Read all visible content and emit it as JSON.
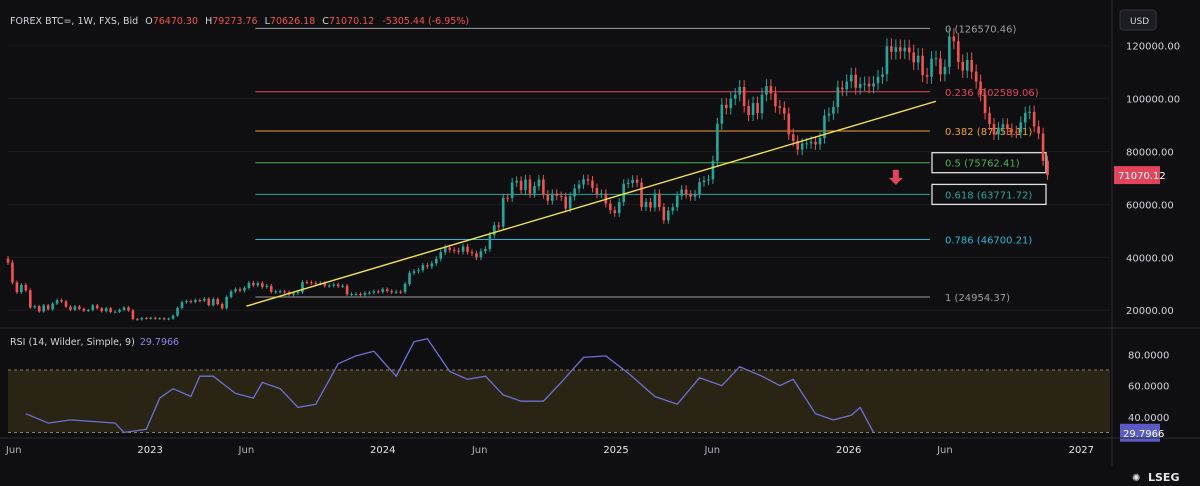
{
  "header": {
    "symbol": "FOREX BTC=, 1W, FXS, Bid",
    "o_label": "O",
    "o": "76470.30",
    "h_label": "H",
    "h": "79273.76",
    "l_label": "L",
    "l": "70626.18",
    "c_label": "C",
    "c": "71070.12",
    "change": "-5305.44 (-6.95%)"
  },
  "currency": "USD",
  "brand": "LSEG",
  "colors": {
    "up": "#26a69a",
    "down": "#ef5350",
    "trend": "#f5e14a",
    "rsi": "#6f6fd6",
    "last_price_bg": "#e2455b"
  },
  "chart_data": {
    "type": "candlestick",
    "y_axis": {
      "scale": "linear",
      "min": 14000,
      "max": 132000,
      "ticks": [
        20000,
        40000,
        60000,
        80000,
        100000,
        120000
      ]
    },
    "y_tick_labels": [
      "20000.00",
      "40000.00",
      "60000.00",
      "80000.00",
      "100000.00",
      "120000.00"
    ],
    "x_axis": {
      "range": [
        "2022-05-23",
        "2027-02-15"
      ],
      "tick_labels": [
        {
          "date": "2022-06-01",
          "label": "Jun"
        },
        {
          "date": "2023-01-01",
          "label": "2023"
        },
        {
          "date": "2023-06-01",
          "label": "Jun"
        },
        {
          "date": "2024-01-01",
          "label": "2024"
        },
        {
          "date": "2024-06-01",
          "label": "Jun"
        },
        {
          "date": "2025-01-01",
          "label": "2025"
        },
        {
          "date": "2025-06-01",
          "label": "Jun"
        },
        {
          "date": "2026-01-01",
          "label": "2026"
        },
        {
          "date": "2026-06-01",
          "label": "Jun"
        },
        {
          "date": "2027-01-01",
          "label": "2027"
        }
      ]
    },
    "last_price": {
      "value": 71070.12,
      "label": "71070.12"
    },
    "fib_levels": [
      {
        "ratio": "0",
        "value": 126570.46,
        "label": "0 (126570.46)",
        "color": "#9e9e9e",
        "boxed": false
      },
      {
        "ratio": "0.236",
        "value": 102589.06,
        "label": "0.236 (102589.06)",
        "color": "#e2455b",
        "boxed": false
      },
      {
        "ratio": "0.382",
        "value": 87753.11,
        "label": "0.382 (87753.11)",
        "color": "#f0a030",
        "boxed": false
      },
      {
        "ratio": "0.5",
        "value": 75762.41,
        "label": "0.5 (75762.41)",
        "color": "#4caf50",
        "boxed": true
      },
      {
        "ratio": "0.618",
        "value": 63771.72,
        "label": "0.618 (63771.72)",
        "color": "#26a69a",
        "boxed": true
      },
      {
        "ratio": "0.786",
        "value": 46700.21,
        "label": "0.786 (46700.21)",
        "color": "#29b6d6",
        "boxed": false
      },
      {
        "ratio": "1",
        "value": 24954.37,
        "label": "1 (24954.37)",
        "color": "#9e9e9e",
        "boxed": false
      }
    ],
    "fib_start_date": "2023-06-15",
    "trendline": {
      "points": [
        {
          "date": "2023-06-01",
          "value": 21500
        },
        {
          "date": "2026-05-18",
          "value": 99000
        }
      ]
    },
    "arrow": {
      "date": "2026-03-16",
      "value": 68500
    },
    "candles_weekly": [
      [
        39500,
        38000
      ],
      [
        38000,
        30500
      ],
      [
        30500,
        26800
      ],
      [
        26800,
        29500
      ],
      [
        29500,
        27500
      ],
      [
        27500,
        21000
      ],
      [
        21000,
        21500
      ],
      [
        21500,
        19500
      ],
      [
        19500,
        21800
      ],
      [
        21800,
        20300
      ],
      [
        20300,
        22500
      ],
      [
        22500,
        23800
      ],
      [
        23800,
        23300
      ],
      [
        23300,
        21300
      ],
      [
        21300,
        20100
      ],
      [
        20100,
        21400
      ],
      [
        21400,
        20500
      ],
      [
        20500,
        19800
      ],
      [
        19800,
        20000
      ],
      [
        20000,
        21800
      ],
      [
        21800,
        20700
      ],
      [
        20700,
        19600
      ],
      [
        19600,
        20700
      ],
      [
        20700,
        19300
      ],
      [
        19300,
        19400
      ],
      [
        19400,
        20100
      ],
      [
        20100,
        21000
      ],
      [
        21000,
        19900
      ],
      [
        19900,
        16600
      ],
      [
        16600,
        16500
      ],
      [
        16500,
        17000
      ],
      [
        17000,
        16900
      ],
      [
        16900,
        17100
      ],
      [
        17100,
        16800
      ],
      [
        16800,
        16900
      ],
      [
        16900,
        16600
      ],
      [
        16600,
        16800
      ],
      [
        16800,
        17900
      ],
      [
        17900,
        20800
      ],
      [
        20800,
        23000
      ],
      [
        23000,
        23400
      ],
      [
        23400,
        23100
      ],
      [
        23100,
        23800
      ],
      [
        23800,
        23600
      ],
      [
        23600,
        24300
      ],
      [
        24300,
        21900
      ],
      [
        21900,
        24200
      ],
      [
        24200,
        22300
      ],
      [
        22300,
        20700
      ],
      [
        20700,
        25000
      ],
      [
        25000,
        27100
      ],
      [
        27100,
        27900
      ],
      [
        27900,
        27400
      ],
      [
        27400,
        28400
      ],
      [
        28400,
        30300
      ],
      [
        30300,
        29400
      ],
      [
        29400,
        30200
      ],
      [
        30200,
        28800
      ],
      [
        28800,
        29200
      ],
      [
        29200,
        26900
      ],
      [
        26900,
        27100
      ],
      [
        27100,
        27100
      ],
      [
        27100,
        26800
      ],
      [
        26800,
        25900
      ],
      [
        25900,
        26400
      ],
      [
        26400,
        26800
      ],
      [
        26800,
        30600
      ],
      [
        30600,
        30500
      ],
      [
        30500,
        30300
      ],
      [
        30300,
        30100
      ],
      [
        30100,
        30200
      ],
      [
        30200,
        29200
      ],
      [
        29200,
        29300
      ],
      [
        29300,
        29700
      ],
      [
        29700,
        29100
      ],
      [
        29100,
        29200
      ],
      [
        29200,
        26000
      ],
      [
        26000,
        26100
      ],
      [
        26100,
        26100
      ],
      [
        26100,
        25900
      ],
      [
        25900,
        26500
      ],
      [
        26500,
        26600
      ],
      [
        26600,
        27100
      ],
      [
        27100,
        26900
      ],
      [
        26900,
        27900
      ],
      [
        27900,
        27200
      ],
      [
        27200,
        26800
      ],
      [
        26800,
        27000
      ],
      [
        27000,
        26800
      ],
      [
        26800,
        29900
      ],
      [
        29900,
        34100
      ],
      [
        34100,
        34700
      ],
      [
        34700,
        35100
      ],
      [
        35100,
        37000
      ],
      [
        37000,
        36500
      ],
      [
        36500,
        37700
      ],
      [
        37700,
        39400
      ],
      [
        39400,
        41900
      ],
      [
        41900,
        43700
      ],
      [
        43700,
        42800
      ],
      [
        42800,
        42500
      ],
      [
        42500,
        42100
      ],
      [
        42100,
        44000
      ],
      [
        44000,
        42000
      ],
      [
        42000,
        41500
      ],
      [
        41500,
        39900
      ],
      [
        39900,
        42300
      ],
      [
        42300,
        43100
      ],
      [
        43100,
        48400
      ],
      [
        48400,
        52100
      ],
      [
        52100,
        51600
      ],
      [
        51600,
        62500
      ],
      [
        62500,
        62400
      ],
      [
        62400,
        68300
      ],
      [
        68300,
        68900
      ],
      [
        68900,
        65400
      ],
      [
        65400,
        69400
      ],
      [
        69400,
        64100
      ],
      [
        64100,
        66900
      ],
      [
        66900,
        69400
      ],
      [
        69400,
        63800
      ],
      [
        63800,
        61400
      ],
      [
        61400,
        64100
      ],
      [
        64100,
        63200
      ],
      [
        63200,
        62900
      ],
      [
        62900,
        58400
      ],
      [
        58400,
        63000
      ],
      [
        63000,
        66000
      ],
      [
        66000,
        67500
      ],
      [
        67500,
        69500
      ],
      [
        69500,
        69000
      ],
      [
        69000,
        66200
      ],
      [
        66200,
        63900
      ],
      [
        63900,
        64100
      ],
      [
        64100,
        60300
      ],
      [
        60300,
        57800
      ],
      [
        57800,
        56700
      ],
      [
        56700,
        60900
      ],
      [
        60900,
        67800
      ],
      [
        67800,
        68100
      ],
      [
        68100,
        69300
      ],
      [
        69300,
        68200
      ],
      [
        68200,
        59000
      ],
      [
        59000,
        60900
      ],
      [
        60900,
        58800
      ],
      [
        58800,
        64100
      ],
      [
        64100,
        59000
      ],
      [
        59000,
        54000
      ],
      [
        54000,
        57600
      ],
      [
        57600,
        58900
      ],
      [
        58900,
        63300
      ],
      [
        63300,
        65600
      ],
      [
        65600,
        63800
      ],
      [
        63800,
        62900
      ],
      [
        62900,
        63900
      ],
      [
        63900,
        68400
      ],
      [
        68400,
        69000
      ],
      [
        69000,
        69500
      ],
      [
        69500,
        76500
      ],
      [
        76500,
        90500
      ],
      [
        90500,
        97700
      ],
      [
        97700,
        96400
      ],
      [
        96400,
        100000
      ],
      [
        100000,
        101500
      ],
      [
        101500,
        104400
      ],
      [
        104400,
        97200
      ],
      [
        97200,
        93800
      ],
      [
        93800,
        98300
      ],
      [
        98300,
        94500
      ],
      [
        94500,
        101500
      ],
      [
        101500,
        104700
      ],
      [
        104700,
        102000
      ],
      [
        102000,
        97100
      ],
      [
        97100,
        96500
      ],
      [
        96500,
        94300
      ],
      [
        94300,
        86500
      ],
      [
        86500,
        84000
      ],
      [
        84000,
        80700
      ],
      [
        80700,
        83000
      ],
      [
        83000,
        83100
      ],
      [
        83100,
        83700
      ],
      [
        83700,
        82700
      ],
      [
        82700,
        85100
      ],
      [
        85100,
        93600
      ],
      [
        93600,
        94300
      ],
      [
        94300,
        96800
      ],
      [
        96800,
        104200
      ],
      [
        104200,
        103500
      ],
      [
        103500,
        106500
      ],
      [
        106500,
        109000
      ],
      [
        109000,
        104100
      ],
      [
        104100,
        105500
      ],
      [
        105500,
        105700
      ],
      [
        105700,
        104600
      ],
      [
        104600,
        105800
      ],
      [
        105800,
        108200
      ],
      [
        108200,
        109200
      ],
      [
        109200,
        119800
      ],
      [
        119800,
        117700
      ],
      [
        117700,
        119400
      ],
      [
        119400,
        117900
      ],
      [
        117900,
        119300
      ],
      [
        119300,
        117500
      ],
      [
        117500,
        113700
      ],
      [
        113700,
        116200
      ],
      [
        116200,
        108900
      ],
      [
        108900,
        108300
      ],
      [
        108300,
        115100
      ],
      [
        115100,
        115200
      ],
      [
        115200,
        109200
      ],
      [
        109200,
        112000
      ],
      [
        112000,
        123500
      ],
      [
        123500,
        121700
      ],
      [
        121700,
        113900
      ],
      [
        113900,
        110600
      ],
      [
        110600,
        114600
      ],
      [
        114600,
        110200
      ],
      [
        110200,
        106400
      ],
      [
        106400,
        101500
      ],
      [
        101500,
        94500
      ],
      [
        94500,
        90400
      ],
      [
        90400,
        86500
      ],
      [
        86500,
        89000
      ],
      [
        89000,
        90300
      ],
      [
        90300,
        88400
      ],
      [
        88400,
        87500
      ],
      [
        87500,
        87200
      ],
      [
        87200,
        91000
      ],
      [
        91000,
        94600
      ],
      [
        94600,
        95000
      ],
      [
        95000,
        89500
      ],
      [
        89500,
        86800
      ],
      [
        86800,
        76470
      ],
      [
        76470,
        71070
      ]
    ],
    "rsi": {
      "title": "RSI (14, Wilder, Simple, 9)",
      "value": 29.7966,
      "value_label": "29.7966",
      "overbought": 70,
      "oversold": 30,
      "y_ticks": [
        40,
        60,
        80
      ],
      "y_tick_labels": [
        "40.0000",
        "60.0000",
        "80.0000"
      ],
      "display_min": 29,
      "display_max": 93,
      "x_start": "2022-06-20",
      "points": [
        {
          "date": "2022-06-20",
          "value": 42
        },
        {
          "date": "2022-07-25",
          "value": 36
        },
        {
          "date": "2022-08-29",
          "value": 38
        },
        {
          "date": "2022-10-03",
          "value": 37
        },
        {
          "date": "2022-11-07",
          "value": 36
        },
        {
          "date": "2022-11-21",
          "value": 30
        },
        {
          "date": "2022-12-26",
          "value": 32
        },
        {
          "date": "2023-01-16",
          "value": 52
        },
        {
          "date": "2023-02-06",
          "value": 58
        },
        {
          "date": "2023-03-06",
          "value": 53
        },
        {
          "date": "2023-03-20",
          "value": 66
        },
        {
          "date": "2023-04-10",
          "value": 66
        },
        {
          "date": "2023-05-15",
          "value": 55
        },
        {
          "date": "2023-06-12",
          "value": 52
        },
        {
          "date": "2023-06-26",
          "value": 62
        },
        {
          "date": "2023-07-24",
          "value": 58
        },
        {
          "date": "2023-08-21",
          "value": 46
        },
        {
          "date": "2023-09-18",
          "value": 48
        },
        {
          "date": "2023-10-23",
          "value": 74
        },
        {
          "date": "2023-11-20",
          "value": 79
        },
        {
          "date": "2023-12-18",
          "value": 82
        },
        {
          "date": "2024-01-22",
          "value": 66
        },
        {
          "date": "2024-02-19",
          "value": 88
        },
        {
          "date": "2024-03-11",
          "value": 90
        },
        {
          "date": "2024-04-15",
          "value": 69
        },
        {
          "date": "2024-05-13",
          "value": 64
        },
        {
          "date": "2024-06-10",
          "value": 66
        },
        {
          "date": "2024-07-08",
          "value": 54
        },
        {
          "date": "2024-08-05",
          "value": 50
        },
        {
          "date": "2024-09-09",
          "value": 50
        },
        {
          "date": "2024-10-07",
          "value": 62
        },
        {
          "date": "2024-11-11",
          "value": 78
        },
        {
          "date": "2024-12-16",
          "value": 79
        },
        {
          "date": "2025-01-20",
          "value": 68
        },
        {
          "date": "2025-03-03",
          "value": 53
        },
        {
          "date": "2025-04-07",
          "value": 48
        },
        {
          "date": "2025-05-12",
          "value": 65
        },
        {
          "date": "2025-06-16",
          "value": 60
        },
        {
          "date": "2025-07-14",
          "value": 72
        },
        {
          "date": "2025-08-18",
          "value": 66
        },
        {
          "date": "2025-09-15",
          "value": 60
        },
        {
          "date": "2025-10-06",
          "value": 64
        },
        {
          "date": "2025-11-10",
          "value": 42
        },
        {
          "date": "2025-12-08",
          "value": 38
        },
        {
          "date": "2026-01-05",
          "value": 41
        },
        {
          "date": "2026-01-19",
          "value": 46
        },
        {
          "date": "2026-02-09",
          "value": 30
        }
      ]
    }
  }
}
